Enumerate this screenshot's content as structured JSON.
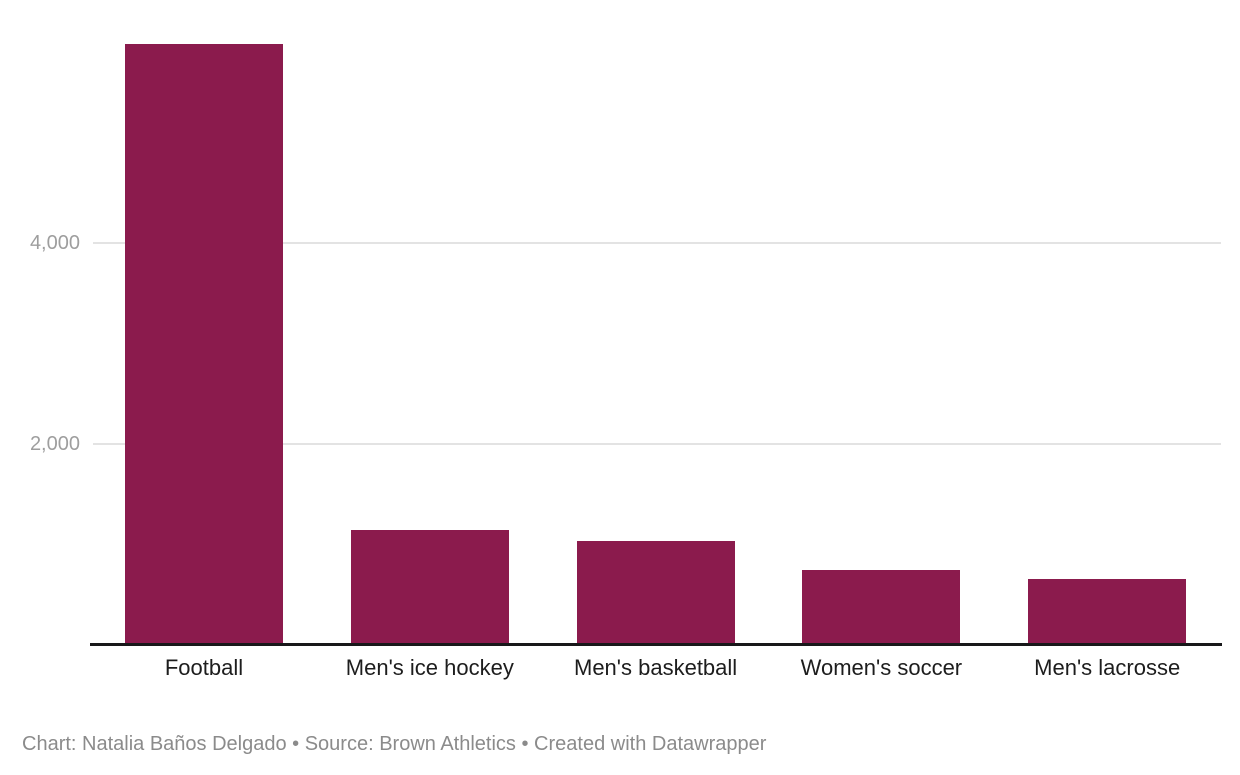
{
  "chart_data": {
    "type": "bar",
    "categories": [
      "Football",
      "Men's ice hockey",
      "Men's basketball",
      "Women's soccer",
      "Men's lacrosse"
    ],
    "values": [
      5970,
      1150,
      1040,
      750,
      660
    ],
    "title": "",
    "xlabel": "",
    "ylabel": "",
    "ylim": [
      0,
      6000
    ],
    "yticks": [
      4000,
      2000
    ],
    "ytick_labels": [
      "4,000",
      "2,000"
    ],
    "grid": "horizontal-only",
    "legend": "none"
  },
  "colors": {
    "bar": "#8b1b4d",
    "gridline": "#e3e3e3",
    "axis_line": "#18181a",
    "tick_label": "#9e9e9e",
    "category_label": "#1d1d1d",
    "footer_text": "#8b8b8b",
    "background": "#ffffff"
  },
  "footer": {
    "text": "Chart: Natalia Baños Delgado • Source: Brown Athletics • Created with Datawrapper"
  }
}
